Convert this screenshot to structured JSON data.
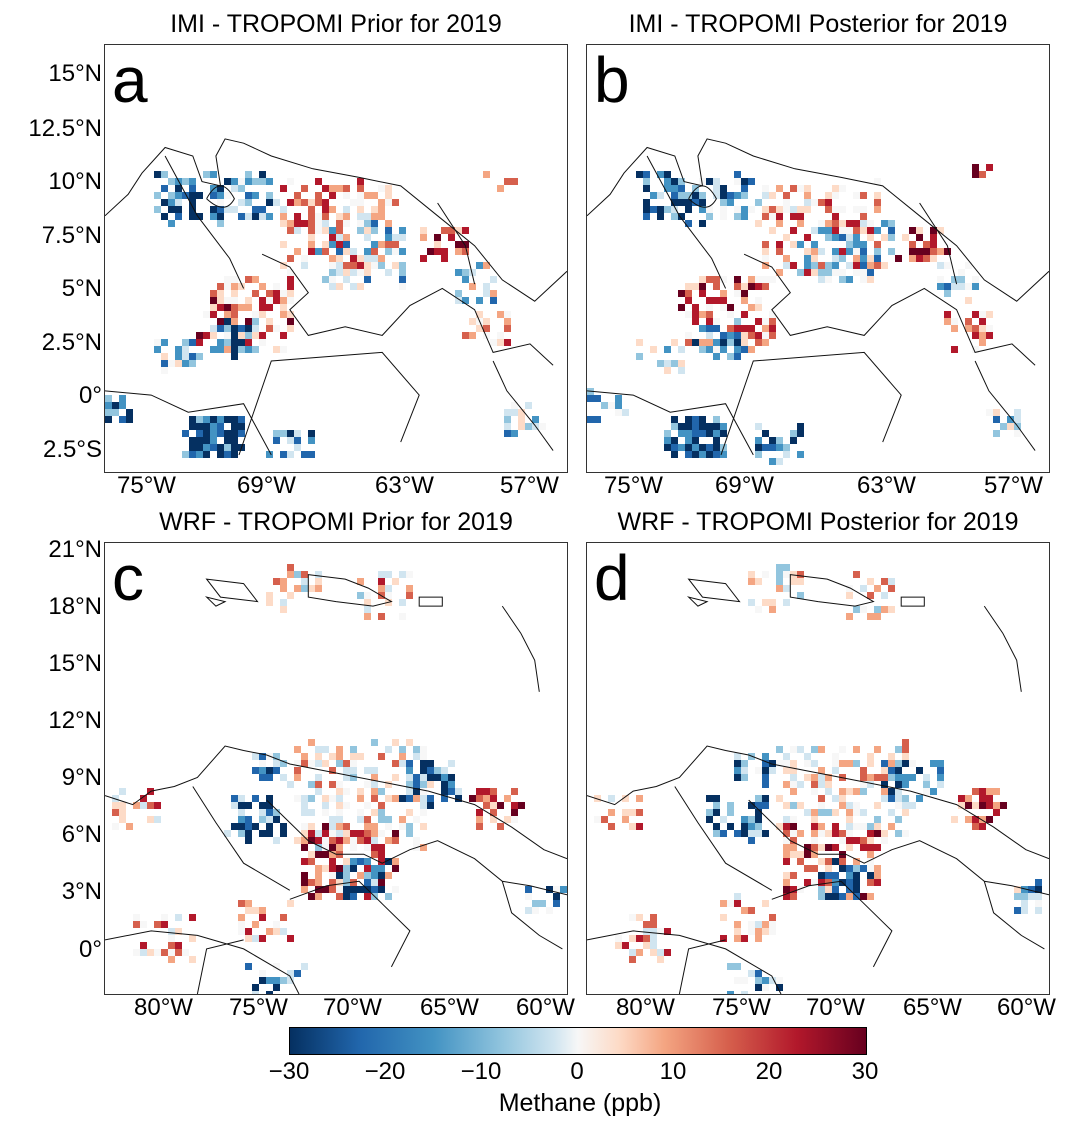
{
  "panels": [
    {
      "title": "IMI - TROPOMI Prior for 2019",
      "letter": "a"
    },
    {
      "title": "IMI - TROPOMI Posterior for 2019",
      "letter": "b"
    },
    {
      "title": "WRF - TROPOMI Prior for 2019",
      "letter": "c"
    },
    {
      "title": "WRF - TROPOMI Posterior for 2019",
      "letter": "d"
    }
  ],
  "top_row": {
    "lat_ticks": [
      "15°N",
      "12.5°N",
      "10°N",
      "7.5°N",
      "5°N",
      "2.5°N",
      "0°",
      "2.5°S"
    ],
    "lon_ticks": [
      "75°W",
      "69°W",
      "63°W",
      "57°W"
    ]
  },
  "bottom_row": {
    "lat_ticks": [
      "21°N",
      "18°N",
      "15°N",
      "12°N",
      "9°N",
      "6°N",
      "3°N",
      "0°"
    ],
    "lon_ticks": [
      "80°W",
      "75°W",
      "70°W",
      "65°W",
      "60°W"
    ]
  },
  "colorbar": {
    "label": "Methane (ppb)",
    "ticks": [
      "−30",
      "−20",
      "−10",
      "0",
      "10",
      "20",
      "30"
    ],
    "range": [
      -30,
      30
    ],
    "colormap": "RdBu_r",
    "colors": [
      "#053061",
      "#2166ac",
      "#4393c3",
      "#92c5de",
      "#d1e5f0",
      "#f7f7f7",
      "#fddbc7",
      "#f4a582",
      "#d6604d",
      "#b2182b",
      "#67001f"
    ]
  }
}
